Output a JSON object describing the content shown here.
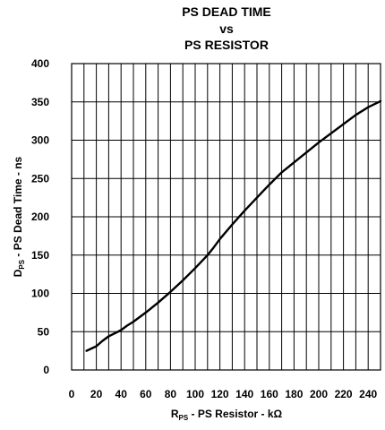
{
  "chart_data": {
    "type": "line",
    "title_lines": [
      "PS DEAD TIME",
      "vs",
      "PS RESISTOR"
    ],
    "xlabel": {
      "main": "R",
      "sub": "PS",
      "rest": " - PS Resistor - kΩ"
    },
    "ylabel": {
      "main": "D",
      "sub": "PS",
      "rest": " - PS Dead Time - ns"
    },
    "xlim": [
      0,
      250
    ],
    "ylim": [
      0,
      400
    ],
    "x_ticks": [
      0,
      20,
      40,
      60,
      80,
      100,
      120,
      140,
      160,
      180,
      200,
      220,
      240
    ],
    "y_ticks": [
      0,
      50,
      100,
      150,
      200,
      250,
      300,
      350,
      400
    ],
    "x_grid": [
      10,
      20,
      30,
      40,
      50,
      60,
      70,
      80,
      90,
      100,
      110,
      120,
      130,
      140,
      150,
      160,
      170,
      180,
      190,
      200,
      210,
      220,
      230,
      240
    ],
    "y_grid": [
      50,
      100,
      150,
      200,
      250,
      300,
      350
    ],
    "grid": true,
    "series": [
      {
        "x": [
          12,
          20,
          25,
          30,
          35,
          40,
          45,
          50,
          60,
          70,
          80,
          90,
          100,
          110,
          115,
          120,
          130,
          140,
          150,
          160,
          170,
          180,
          190,
          200,
          210,
          220,
          230,
          240,
          250
        ],
        "y": [
          25,
          31,
          38,
          44,
          48,
          52,
          58,
          63,
          75,
          88,
          102,
          117,
          133,
          150,
          160,
          171,
          190,
          208,
          225,
          242,
          258,
          271,
          284,
          297,
          309,
          321,
          333,
          343,
          351
        ]
      }
    ]
  }
}
